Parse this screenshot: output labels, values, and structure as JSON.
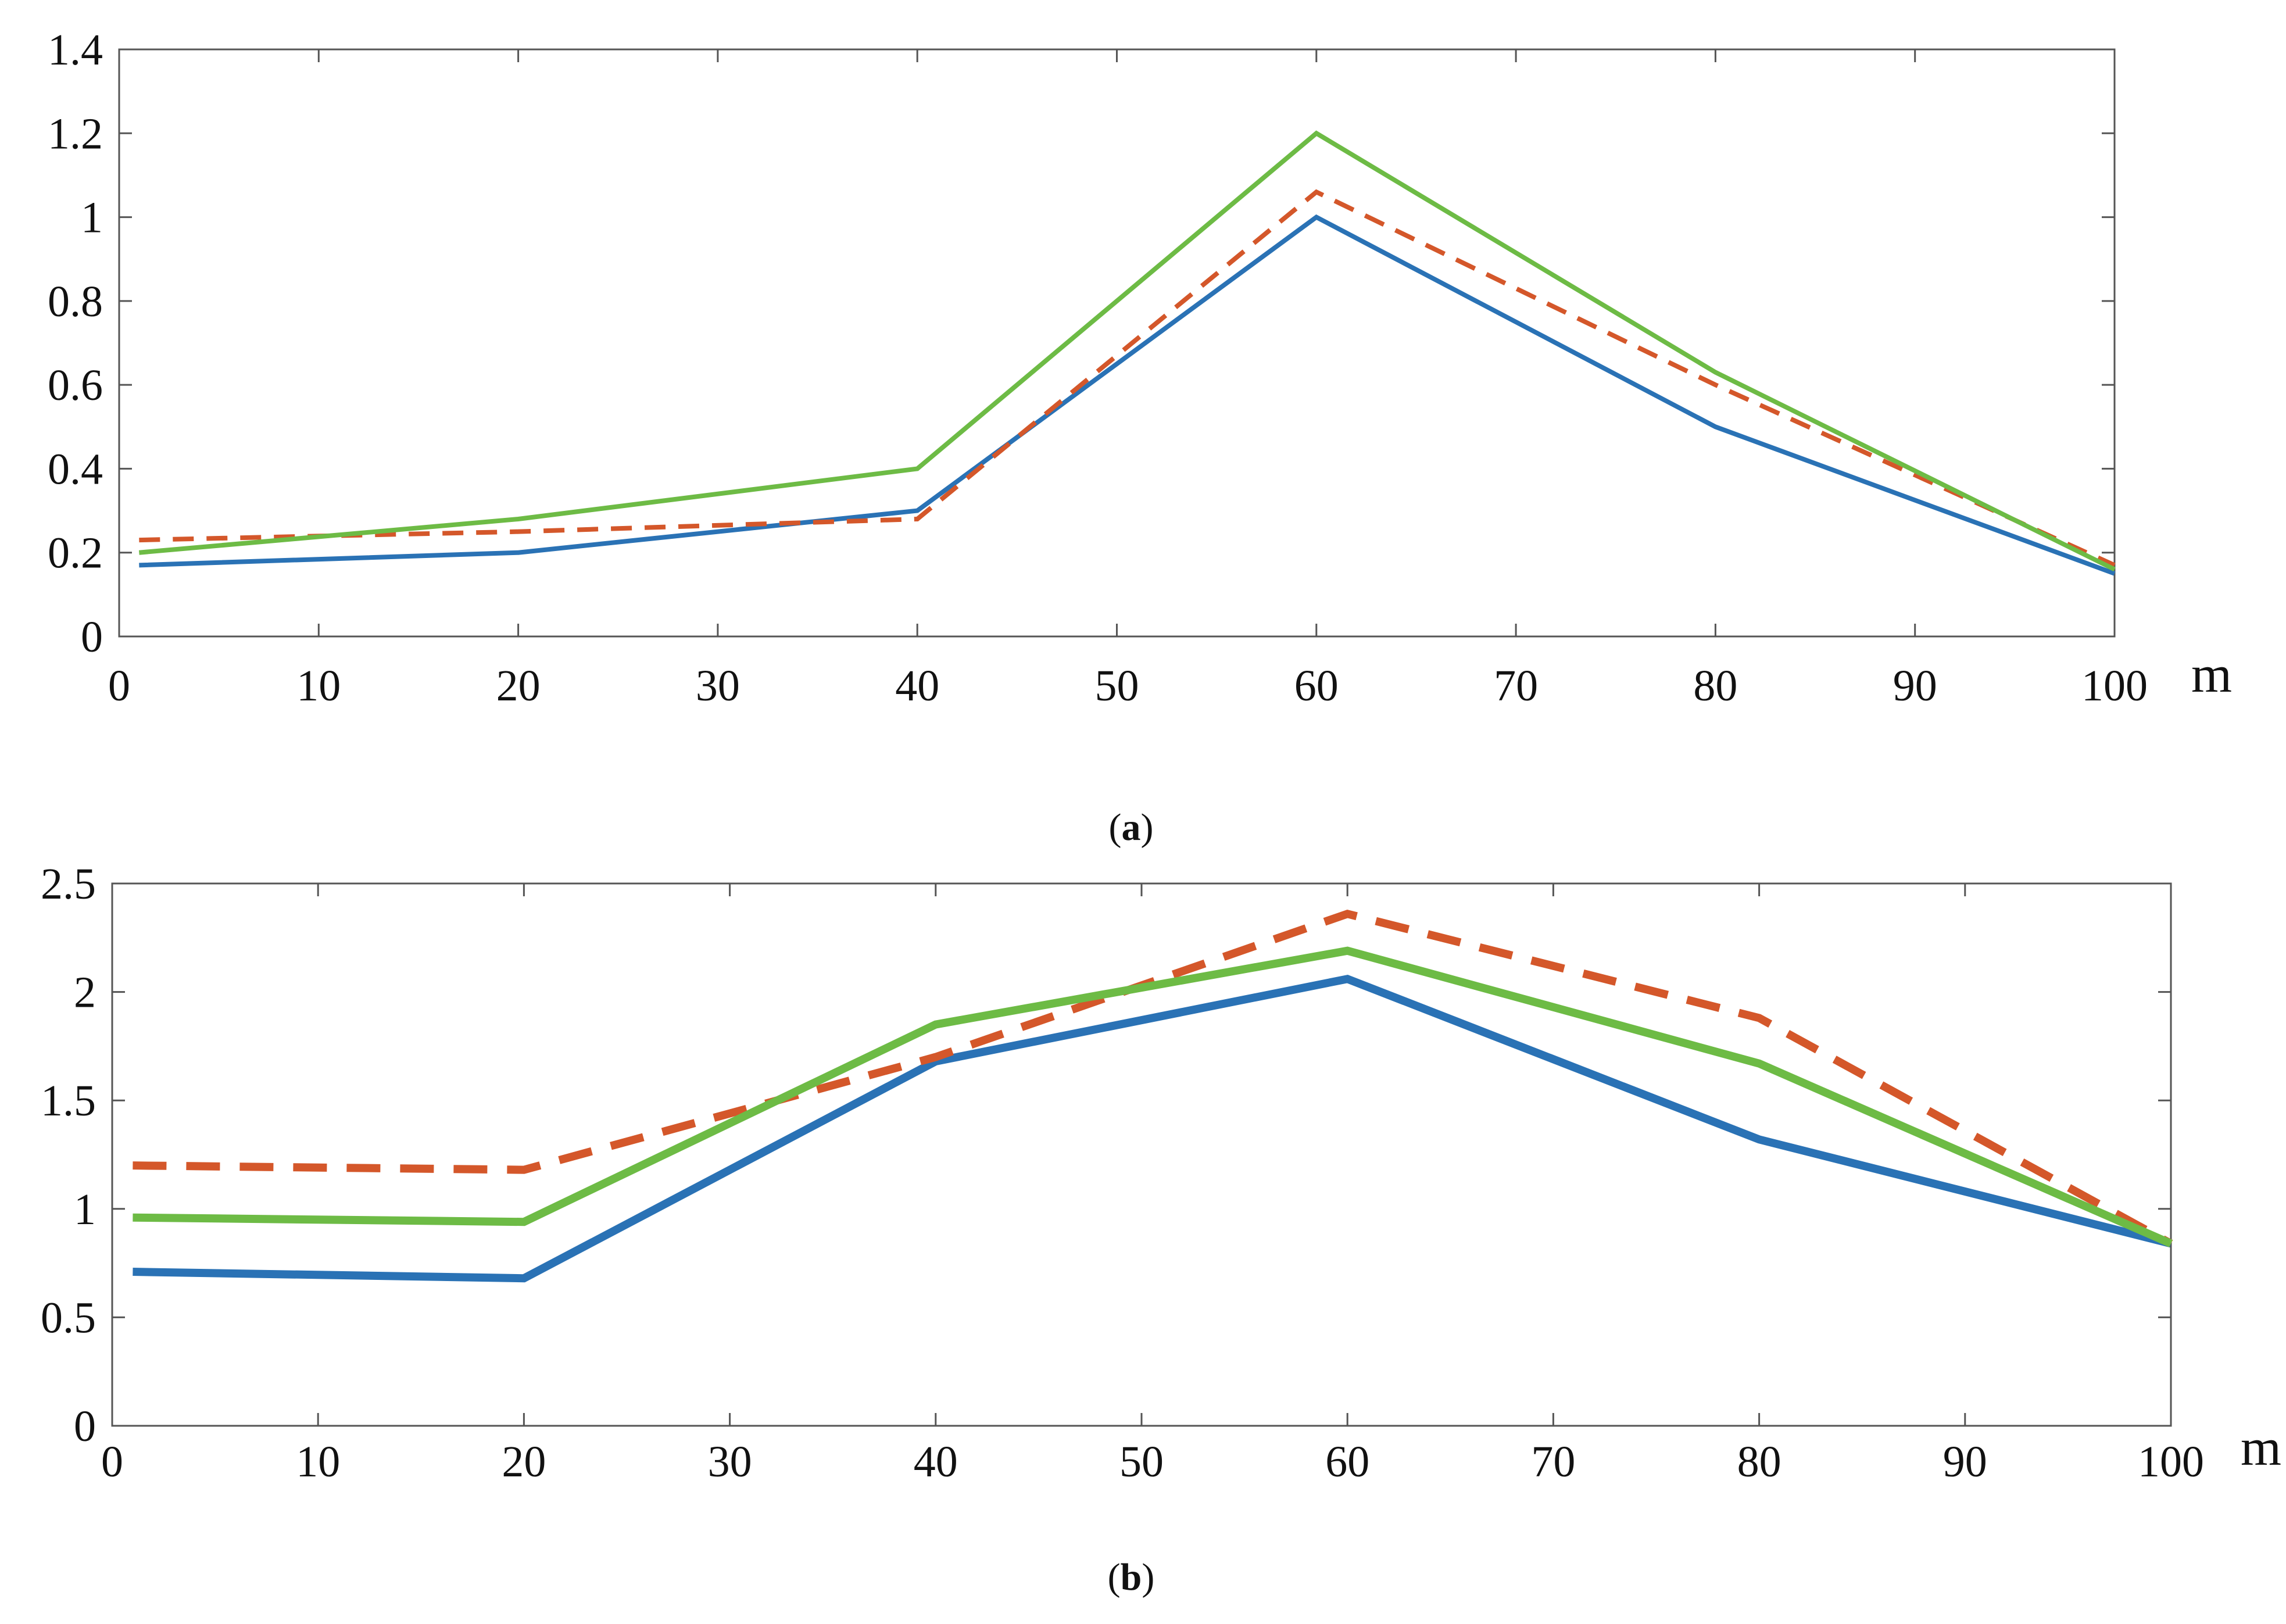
{
  "chart_data": [
    {
      "panel": "a",
      "type": "line",
      "caption_letter": "a",
      "x_unit": "m",
      "xlim": [
        0,
        100
      ],
      "ylim": [
        0,
        1.4
      ],
      "x_ticks": [
        0,
        10,
        20,
        30,
        40,
        50,
        60,
        70,
        80,
        90,
        100
      ],
      "x_tick_labels": [
        "0",
        "10",
        "20",
        "30",
        "40",
        "50",
        "60",
        "70",
        "80",
        "90",
        "100"
      ],
      "y_ticks": [
        0,
        0.2,
        0.4,
        0.6,
        0.8,
        1.0,
        1.2,
        1.4
      ],
      "y_tick_labels": [
        "0",
        "0.2",
        "0.4",
        "0.6",
        "0.8",
        "1",
        "1.2",
        "1.4"
      ],
      "grid": false,
      "series": [
        {
          "name": "blue",
          "color": "#2a72b5",
          "dash": false,
          "x": [
            1,
            20,
            40,
            60,
            80,
            100
          ],
          "values": [
            0.17,
            0.2,
            0.3,
            1.0,
            0.5,
            0.15
          ]
        },
        {
          "name": "orange-dashed",
          "color": "#d4572a",
          "dash": true,
          "x": [
            1,
            20,
            40,
            60,
            80,
            100
          ],
          "values": [
            0.23,
            0.25,
            0.28,
            1.06,
            0.6,
            0.17
          ]
        },
        {
          "name": "green",
          "color": "#6dbb45",
          "dash": false,
          "x": [
            1,
            20,
            40,
            60,
            80,
            100
          ],
          "values": [
            0.2,
            0.28,
            0.4,
            1.2,
            0.63,
            0.16
          ]
        }
      ]
    },
    {
      "panel": "b",
      "type": "line",
      "caption_letter": "b",
      "x_unit": "m",
      "xlim": [
        0,
        100
      ],
      "ylim": [
        0,
        2.5
      ],
      "x_ticks": [
        0,
        10,
        20,
        30,
        40,
        50,
        60,
        70,
        80,
        90,
        100
      ],
      "x_tick_labels": [
        "0",
        "10",
        "20",
        "30",
        "40",
        "50",
        "60",
        "70",
        "80",
        "90",
        "100"
      ],
      "y_ticks": [
        0,
        0.5,
        1.0,
        1.5,
        2.0,
        2.5
      ],
      "y_tick_labels": [
        "0",
        "0.5",
        "1",
        "1.5",
        "2",
        "2.5"
      ],
      "grid": false,
      "series": [
        {
          "name": "blue",
          "color": "#2a72b5",
          "dash": false,
          "x": [
            1,
            20,
            40,
            60,
            80,
            100
          ],
          "values": [
            0.71,
            0.68,
            1.68,
            2.06,
            1.32,
            0.84
          ]
        },
        {
          "name": "orange-dashed",
          "color": "#d4572a",
          "dash": true,
          "x": [
            1,
            20,
            40,
            60,
            80,
            100
          ],
          "values": [
            1.2,
            1.18,
            1.7,
            2.36,
            1.88,
            0.84
          ]
        },
        {
          "name": "green",
          "color": "#6dbb45",
          "dash": false,
          "x": [
            1,
            20,
            40,
            60,
            80,
            100
          ],
          "values": [
            0.96,
            0.94,
            1.85,
            2.19,
            1.67,
            0.84
          ]
        }
      ]
    }
  ]
}
